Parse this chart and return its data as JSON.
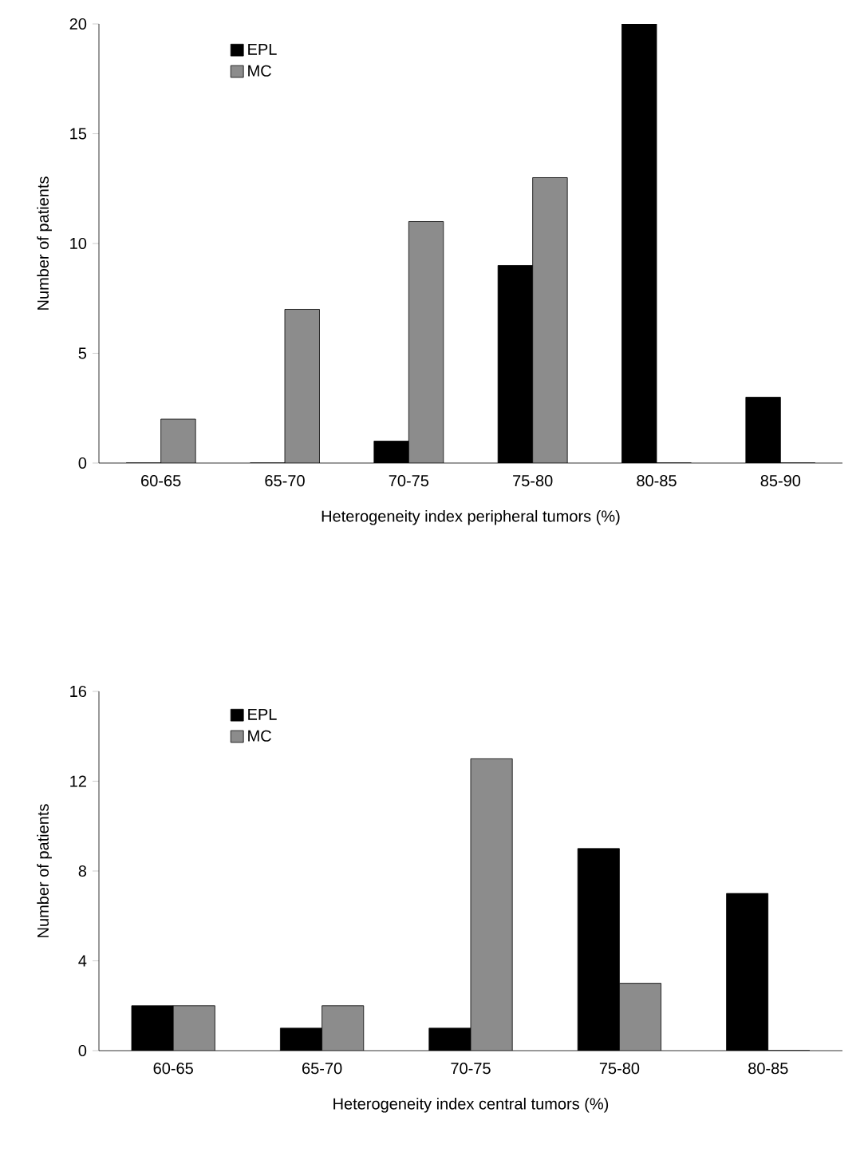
{
  "chart_data": [
    {
      "type": "bar",
      "xlabel": "Heterogeneity index peripheral tumors (%)",
      "ylabel": "Number of patients",
      "categories": [
        "60-65",
        "65-70",
        "70-75",
        "75-80",
        "80-85",
        "85-90"
      ],
      "series": [
        {
          "name": "EPL",
          "color": "#000000",
          "values": [
            0,
            0,
            1,
            9,
            20,
            3
          ]
        },
        {
          "name": "MC",
          "color": "#8c8c8c",
          "values": [
            2,
            7,
            11,
            13,
            0,
            0
          ]
        }
      ],
      "ylim": [
        0,
        20
      ],
      "yticks": [
        0,
        5,
        10,
        15,
        20
      ],
      "grid": false,
      "legend": "top left"
    },
    {
      "type": "bar",
      "xlabel": "Heterogeneity index central tumors (%)",
      "ylabel": "Number of patients",
      "categories": [
        "60-65",
        "65-70",
        "70-75",
        "75-80",
        "80-85"
      ],
      "series": [
        {
          "name": "EPL",
          "color": "#000000",
          "values": [
            2,
            1,
            1,
            9,
            7
          ]
        },
        {
          "name": "MC",
          "color": "#8c8c8c",
          "values": [
            2,
            2,
            13,
            3,
            0
          ]
        }
      ],
      "ylim": [
        0,
        16
      ],
      "yticks": [
        0,
        4,
        8,
        12,
        16
      ],
      "grid": false,
      "legend": "top left"
    }
  ]
}
